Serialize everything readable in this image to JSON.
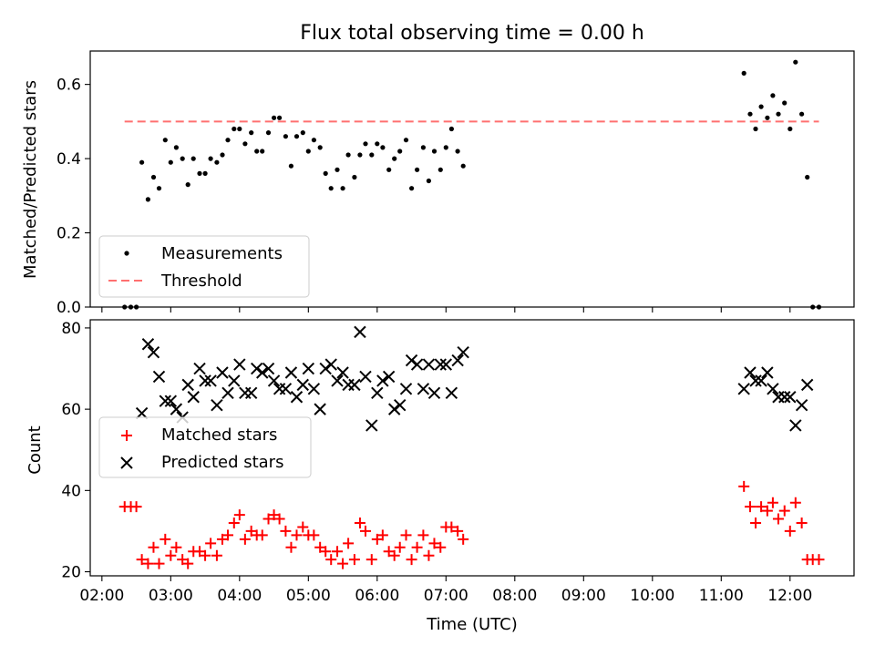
{
  "figure": {
    "title": "Flux total observing time = 0.00 h",
    "xlabel": "Time (UTC)",
    "xticks": [
      "02:00",
      "03:00",
      "04:00",
      "05:00",
      "06:00",
      "07:00",
      "08:00",
      "09:00",
      "10:00",
      "11:00",
      "12:00"
    ]
  },
  "chart_data": [
    {
      "type": "scatter",
      "ylabel": "Matched/Predicted stars",
      "x_unit": "hours UTC",
      "xlim": [
        1.83,
        12.93
      ],
      "ylim": [
        0.0,
        0.69
      ],
      "yticks": [
        "0.0",
        "0.2",
        "0.4",
        "0.6"
      ],
      "grid": false,
      "legend": "lower-left",
      "series": [
        {
          "name": "Measurements",
          "marker": "dot",
          "color": "#000000",
          "points": [
            [
              2.33,
              0.0
            ],
            [
              2.42,
              0.0
            ],
            [
              2.5,
              0.0
            ],
            [
              2.58,
              0.39
            ],
            [
              2.67,
              0.29
            ],
            [
              2.75,
              0.35
            ],
            [
              2.83,
              0.32
            ],
            [
              2.92,
              0.45
            ],
            [
              3.0,
              0.39
            ],
            [
              3.08,
              0.43
            ],
            [
              3.17,
              0.4
            ],
            [
              3.25,
              0.33
            ],
            [
              3.33,
              0.4
            ],
            [
              3.42,
              0.36
            ],
            [
              3.5,
              0.36
            ],
            [
              3.58,
              0.4
            ],
            [
              3.67,
              0.39
            ],
            [
              3.75,
              0.41
            ],
            [
              3.83,
              0.45
            ],
            [
              3.92,
              0.48
            ],
            [
              4.0,
              0.48
            ],
            [
              4.08,
              0.44
            ],
            [
              4.17,
              0.47
            ],
            [
              4.25,
              0.42
            ],
            [
              4.33,
              0.42
            ],
            [
              4.42,
              0.47
            ],
            [
              4.5,
              0.51
            ],
            [
              4.58,
              0.51
            ],
            [
              4.67,
              0.46
            ],
            [
              4.75,
              0.38
            ],
            [
              4.83,
              0.46
            ],
            [
              4.92,
              0.47
            ],
            [
              5.0,
              0.42
            ],
            [
              5.08,
              0.45
            ],
            [
              5.17,
              0.43
            ],
            [
              5.25,
              0.36
            ],
            [
              5.33,
              0.32
            ],
            [
              5.42,
              0.37
            ],
            [
              5.5,
              0.32
            ],
            [
              5.58,
              0.41
            ],
            [
              5.67,
              0.35
            ],
            [
              5.75,
              0.41
            ],
            [
              5.83,
              0.44
            ],
            [
              5.92,
              0.41
            ],
            [
              6.0,
              0.44
            ],
            [
              6.08,
              0.43
            ],
            [
              6.17,
              0.37
            ],
            [
              6.25,
              0.4
            ],
            [
              6.33,
              0.42
            ],
            [
              6.42,
              0.45
            ],
            [
              6.5,
              0.32
            ],
            [
              6.58,
              0.37
            ],
            [
              6.67,
              0.43
            ],
            [
              6.75,
              0.34
            ],
            [
              6.83,
              0.42
            ],
            [
              6.92,
              0.37
            ],
            [
              7.0,
              0.43
            ],
            [
              7.08,
              0.48
            ],
            [
              7.17,
              0.42
            ],
            [
              7.25,
              0.38
            ],
            [
              11.33,
              0.63
            ],
            [
              11.42,
              0.52
            ],
            [
              11.5,
              0.48
            ],
            [
              11.58,
              0.54
            ],
            [
              11.67,
              0.51
            ],
            [
              11.75,
              0.57
            ],
            [
              11.83,
              0.52
            ],
            [
              11.92,
              0.55
            ],
            [
              12.0,
              0.48
            ],
            [
              12.08,
              0.66
            ],
            [
              12.17,
              0.52
            ],
            [
              12.25,
              0.35
            ],
            [
              12.33,
              0.0
            ],
            [
              12.42,
              0.0
            ]
          ]
        },
        {
          "name": "Threshold",
          "type": "line",
          "style": "dashed",
          "color": "#ff7070",
          "points": [
            [
              2.33,
              0.5
            ],
            [
              12.42,
              0.5
            ]
          ]
        }
      ]
    },
    {
      "type": "scatter",
      "ylabel": "Count",
      "x_unit": "hours UTC",
      "xlim": [
        1.83,
        12.93
      ],
      "ylim": [
        19,
        82
      ],
      "yticks": [
        "20",
        "40",
        "60",
        "80"
      ],
      "grid": false,
      "legend": "center-left",
      "series": [
        {
          "name": "Matched stars",
          "marker": "plus",
          "color": "#ff0000",
          "points": [
            [
              2.33,
              36
            ],
            [
              2.42,
              36
            ],
            [
              2.5,
              36
            ],
            [
              2.58,
              23
            ],
            [
              2.67,
              22
            ],
            [
              2.75,
              26
            ],
            [
              2.83,
              22
            ],
            [
              2.92,
              28
            ],
            [
              3.0,
              24
            ],
            [
              3.08,
              26
            ],
            [
              3.17,
              23
            ],
            [
              3.25,
              22
            ],
            [
              3.33,
              25
            ],
            [
              3.42,
              25
            ],
            [
              3.5,
              24
            ],
            [
              3.58,
              27
            ],
            [
              3.67,
              24
            ],
            [
              3.75,
              28
            ],
            [
              3.83,
              29
            ],
            [
              3.92,
              32
            ],
            [
              4.0,
              34
            ],
            [
              4.08,
              28
            ],
            [
              4.17,
              30
            ],
            [
              4.25,
              29
            ],
            [
              4.33,
              29
            ],
            [
              4.42,
              33
            ],
            [
              4.5,
              34
            ],
            [
              4.58,
              33
            ],
            [
              4.67,
              30
            ],
            [
              4.75,
              26
            ],
            [
              4.83,
              29
            ],
            [
              4.92,
              31
            ],
            [
              5.0,
              29
            ],
            [
              5.08,
              29
            ],
            [
              5.17,
              26
            ],
            [
              5.25,
              25
            ],
            [
              5.33,
              23
            ],
            [
              5.42,
              25
            ],
            [
              5.5,
              22
            ],
            [
              5.58,
              27
            ],
            [
              5.67,
              23
            ],
            [
              5.75,
              32
            ],
            [
              5.83,
              30
            ],
            [
              5.92,
              23
            ],
            [
              6.0,
              28
            ],
            [
              6.08,
              29
            ],
            [
              6.17,
              25
            ],
            [
              6.25,
              24
            ],
            [
              6.33,
              26
            ],
            [
              6.42,
              29
            ],
            [
              6.5,
              23
            ],
            [
              6.58,
              26
            ],
            [
              6.67,
              29
            ],
            [
              6.75,
              24
            ],
            [
              6.83,
              27
            ],
            [
              6.92,
              26
            ],
            [
              7.0,
              31
            ],
            [
              7.08,
              31
            ],
            [
              7.17,
              30
            ],
            [
              7.25,
              28
            ],
            [
              11.33,
              41
            ],
            [
              11.42,
              36
            ],
            [
              11.5,
              32
            ],
            [
              11.58,
              36
            ],
            [
              11.67,
              35
            ],
            [
              11.75,
              37
            ],
            [
              11.83,
              33
            ],
            [
              11.92,
              35
            ],
            [
              12.0,
              30
            ],
            [
              12.08,
              37
            ],
            [
              12.17,
              32
            ],
            [
              12.25,
              23
            ],
            [
              12.33,
              23
            ],
            [
              12.42,
              23
            ]
          ]
        },
        {
          "name": "Predicted stars",
          "marker": "x",
          "color": "#000000",
          "points": [
            [
              2.58,
              59
            ],
            [
              2.67,
              76
            ],
            [
              2.75,
              74
            ],
            [
              2.83,
              68
            ],
            [
              2.92,
              62
            ],
            [
              3.0,
              62
            ],
            [
              3.08,
              60
            ],
            [
              3.17,
              58
            ],
            [
              3.25,
              66
            ],
            [
              3.33,
              63
            ],
            [
              3.42,
              70
            ],
            [
              3.5,
              67
            ],
            [
              3.58,
              67
            ],
            [
              3.67,
              61
            ],
            [
              3.75,
              69
            ],
            [
              3.83,
              64
            ],
            [
              3.92,
              67
            ],
            [
              4.0,
              71
            ],
            [
              4.08,
              64
            ],
            [
              4.17,
              64
            ],
            [
              4.25,
              70
            ],
            [
              4.33,
              69
            ],
            [
              4.42,
              70
            ],
            [
              4.5,
              67
            ],
            [
              4.58,
              65
            ],
            [
              4.67,
              65
            ],
            [
              4.75,
              69
            ],
            [
              4.83,
              63
            ],
            [
              4.92,
              66
            ],
            [
              5.0,
              70
            ],
            [
              5.08,
              65
            ],
            [
              5.17,
              60
            ],
            [
              5.25,
              70
            ],
            [
              5.33,
              71
            ],
            [
              5.42,
              67
            ],
            [
              5.5,
              69
            ],
            [
              5.58,
              66
            ],
            [
              5.67,
              66
            ],
            [
              5.75,
              79
            ],
            [
              5.83,
              68
            ],
            [
              5.92,
              56
            ],
            [
              6.0,
              64
            ],
            [
              6.08,
              67
            ],
            [
              6.17,
              68
            ],
            [
              6.25,
              60
            ],
            [
              6.33,
              61
            ],
            [
              6.42,
              65
            ],
            [
              6.5,
              72
            ],
            [
              6.58,
              71
            ],
            [
              6.67,
              65
            ],
            [
              6.75,
              71
            ],
            [
              6.83,
              64
            ],
            [
              6.92,
              71
            ],
            [
              7.0,
              71
            ],
            [
              7.08,
              64
            ],
            [
              7.17,
              72
            ],
            [
              7.25,
              74
            ],
            [
              11.33,
              65
            ],
            [
              11.42,
              69
            ],
            [
              11.5,
              67
            ],
            [
              11.58,
              67
            ],
            [
              11.67,
              69
            ],
            [
              11.75,
              65
            ],
            [
              11.83,
              63
            ],
            [
              11.92,
              63
            ],
            [
              12.0,
              63
            ],
            [
              12.08,
              56
            ],
            [
              12.17,
              61
            ],
            [
              12.25,
              66
            ]
          ]
        }
      ]
    }
  ]
}
